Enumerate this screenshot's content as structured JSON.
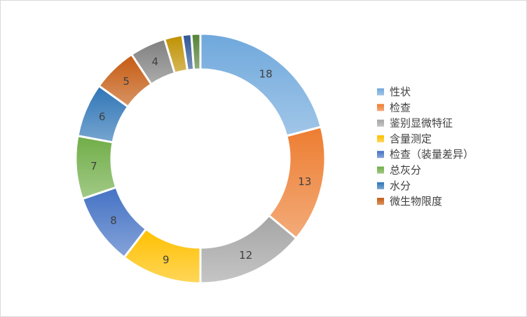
{
  "chart_data": {
    "type": "pie",
    "donut": true,
    "legend_position": "right",
    "show_data_labels": true,
    "series": [
      {
        "values": [
          18,
          13,
          12,
          9,
          8,
          7,
          6,
          5,
          4,
          2,
          1,
          1
        ]
      }
    ],
    "categories": [
      "性状",
      "检查",
      "鉴别显微特征",
      "含量测定",
      "检查（装量差异）",
      "总灰分",
      "水分",
      "微生物限度",
      "",
      "",
      "",
      ""
    ],
    "legend_entries": [
      "性状",
      "检查",
      "鉴别显微特征",
      "含量测定",
      "检查（装量差异）",
      "总灰分",
      "水分",
      "微生物限度"
    ],
    "slice_colors": [
      "#6fa8dc",
      "#ed7d31",
      "#a5a5a5",
      "#ffc000",
      "#4472c4",
      "#70ad47",
      "#2e75b6",
      "#c55a11",
      "#7f7f7f",
      "#bf9000",
      "#2f5597",
      "#548235"
    ],
    "show_label_for_slices": [
      true,
      true,
      true,
      true,
      true,
      true,
      true,
      true,
      true,
      false,
      false,
      false
    ]
  }
}
